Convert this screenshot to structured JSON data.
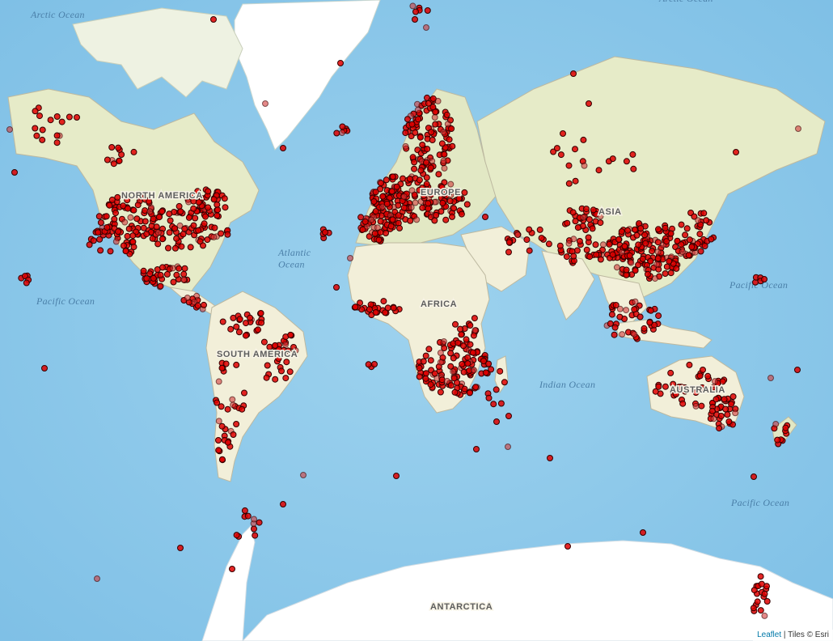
{
  "map": {
    "ocean_labels": [
      {
        "id": "arctic-w",
        "text": "Arctic Ocean"
      },
      {
        "id": "arctic-e",
        "text": "Arctic Ocean"
      },
      {
        "id": "atlantic",
        "text": "Atlantic\nOcean"
      },
      {
        "id": "pacific-w",
        "text": "Pacific Ocean"
      },
      {
        "id": "indian",
        "text": "Indian Ocean"
      },
      {
        "id": "pacific-e",
        "text": "Pacific Ocean"
      },
      {
        "id": "pacific-se",
        "text": "Pacific Ocean"
      }
    ],
    "continent_labels": [
      {
        "id": "north-america",
        "text": "NORTH AMERICA"
      },
      {
        "id": "south-america",
        "text": "SOUTH AMERICA"
      },
      {
        "id": "europe",
        "text": "EUROPE"
      },
      {
        "id": "africa",
        "text": "AFRICA"
      },
      {
        "id": "asia",
        "text": "ASIA"
      },
      {
        "id": "australia",
        "text": "AUSTRALIA"
      },
      {
        "id": "antarctica",
        "text": "ANTARCTICA"
      }
    ],
    "colors": {
      "ocean": "#a8d8f0",
      "ocean_deep": "#8fc8e8",
      "land": "#f2efd9",
      "land_green": "#d9e6b8",
      "ice": "#ffffff",
      "marker_fill": "#e00000",
      "marker_stroke": "#330000"
    }
  },
  "attribution": {
    "leaflet": "Leaflet",
    "separator": " | ",
    "tiles": "Tiles © Esri"
  }
}
